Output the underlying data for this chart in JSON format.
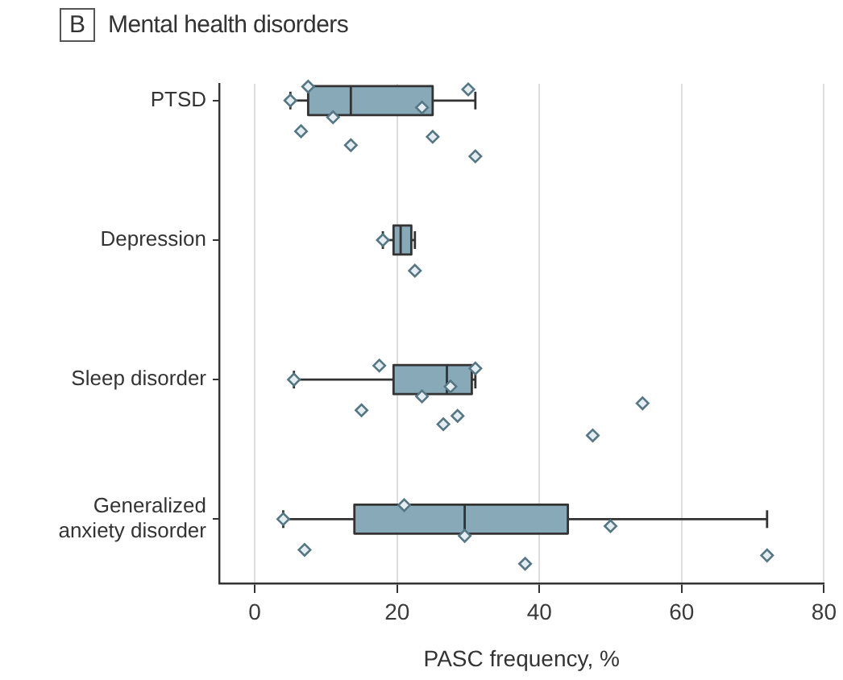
{
  "chart_data": {
    "type": "box",
    "title": "Mental health disorders",
    "annotations": [
      "B"
    ],
    "xlabel": "PASC frequency, %",
    "orientation": "horizontal",
    "categories": [
      "PTSD",
      "Depression",
      "Sleep disorder",
      "Generalized anxiety disorder"
    ],
    "series": [
      {
        "type": "box",
        "color": "#88a9b7",
        "boxes": [
          {
            "low": 5,
            "q1": 7.5,
            "median": 13.5,
            "q3": 25,
            "high": 31
          },
          {
            "low": 18,
            "q1": 19.5,
            "median": 20.5,
            "q3": 22,
            "high": 22.5
          },
          {
            "low": 5.5,
            "q1": 19.5,
            "median": 27,
            "q3": 30.5,
            "high": 31
          },
          {
            "low": 4,
            "q1": 14,
            "median": 29.5,
            "q3": 44,
            "high": 72
          }
        ]
      },
      {
        "type": "scatter",
        "color": "#557784",
        "x": [
          "PTSD",
          "PTSD",
          "PTSD",
          "PTSD",
          "PTSD",
          "PTSD",
          "PTSD",
          "PTSD",
          "PTSD",
          "Depression",
          "Depression",
          "Sleep disorder",
          "Sleep disorder",
          "Sleep disorder",
          "Sleep disorder",
          "Sleep disorder",
          "Sleep disorder",
          "Sleep disorder",
          "Sleep disorder",
          "Sleep disorder",
          "Sleep disorder",
          "Generalized anxiety disorder",
          "Generalized anxiety disorder",
          "Generalized anxiety disorder",
          "Generalized anxiety disorder",
          "Generalized anxiety disorder",
          "Generalized anxiety disorder",
          "Generalized anxiety disorder"
        ],
        "values": [
          5,
          6.5,
          7.5,
          11,
          13.5,
          23.5,
          25,
          30,
          31,
          18,
          22.5,
          5.5,
          15,
          17.5,
          23.5,
          26.5,
          27.5,
          28.5,
          31,
          47.5,
          54.5,
          4,
          7,
          21,
          29.5,
          38,
          50,
          72
        ]
      }
    ],
    "xlim": [
      -5,
      80
    ],
    "xticks": [
      0,
      20,
      40,
      60,
      80
    ],
    "grid": "x",
    "marker": "diamond"
  }
}
